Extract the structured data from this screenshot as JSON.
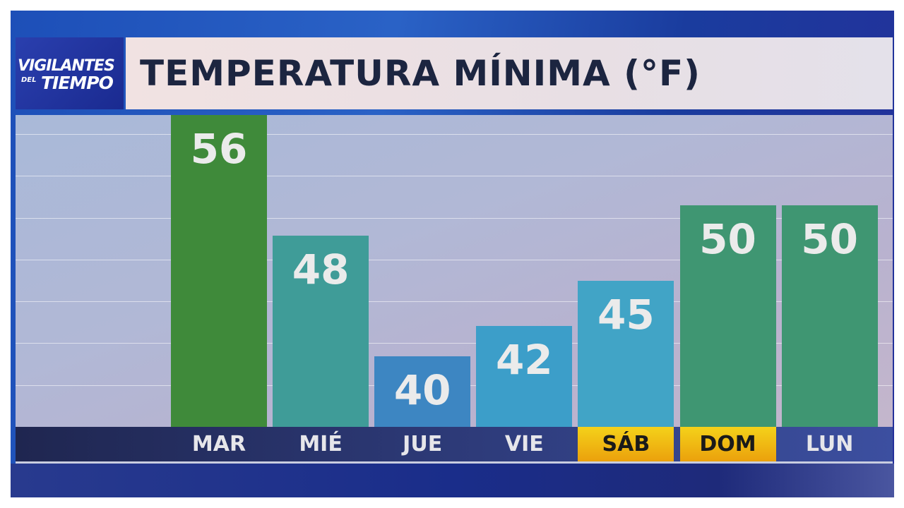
{
  "logo": {
    "line1": "VIGILANTES",
    "line2": "DEL",
    "line3": "TIEMPO"
  },
  "chart_data": {
    "type": "bar",
    "title": "TEMPERATURA MÍNIMA (°F)",
    "categories": [
      "MAR",
      "MIÉ",
      "JUE",
      "VIE",
      "SÁB",
      "DOM",
      "LUN"
    ],
    "values": [
      56,
      48,
      40,
      42,
      45,
      50,
      50
    ],
    "value_labels": [
      "56",
      "48",
      "40",
      "42",
      "45",
      "50",
      "50"
    ],
    "bar_colors": [
      "#3f8a3a",
      "#3f9c98",
      "#3d86c2",
      "#3c9ec9",
      "#41a4c6",
      "#3f9672",
      "#3f9672"
    ],
    "highlighted_categories": [
      "SÁB",
      "DOM"
    ],
    "highlight_color": "#f0c419",
    "ylim": [
      35.3,
      56
    ],
    "grid": true,
    "xlabel": "",
    "ylabel": ""
  }
}
